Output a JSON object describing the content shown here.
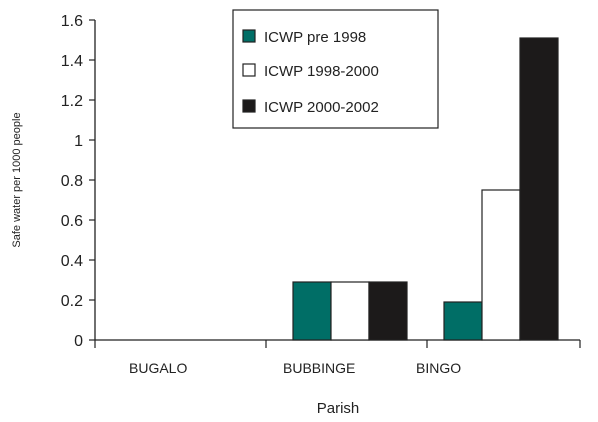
{
  "chart_data": {
    "type": "bar",
    "title": "",
    "xlabel": "Parish",
    "ylabel": "Safe water per 1000 people",
    "ylim": [
      0,
      1.6
    ],
    "yticks": [
      0,
      0.2,
      0.4,
      0.6,
      0.8,
      1,
      1.2,
      1.4,
      1.6
    ],
    "ytick_labels": [
      "0",
      "0.2",
      "0.4",
      "0.6",
      "0.8",
      "1",
      "1.2",
      "1.4",
      "1.6"
    ],
    "categories": [
      "BUGALO",
      "BUBBINGE",
      "BINGO"
    ],
    "series": [
      {
        "name": "ICWP pre  1998",
        "color": "#006e66",
        "values": [
          0,
          0.29,
          0.19
        ]
      },
      {
        "name": "ICWP 1998-2000",
        "color": "#ffffff",
        "values": [
          0,
          0.29,
          0.75
        ]
      },
      {
        "name": "ICWP 2000-2002",
        "color": "#1c1a1a",
        "values": [
          0,
          0.29,
          1.51
        ]
      }
    ],
    "grid": false,
    "legend": "top-right"
  }
}
